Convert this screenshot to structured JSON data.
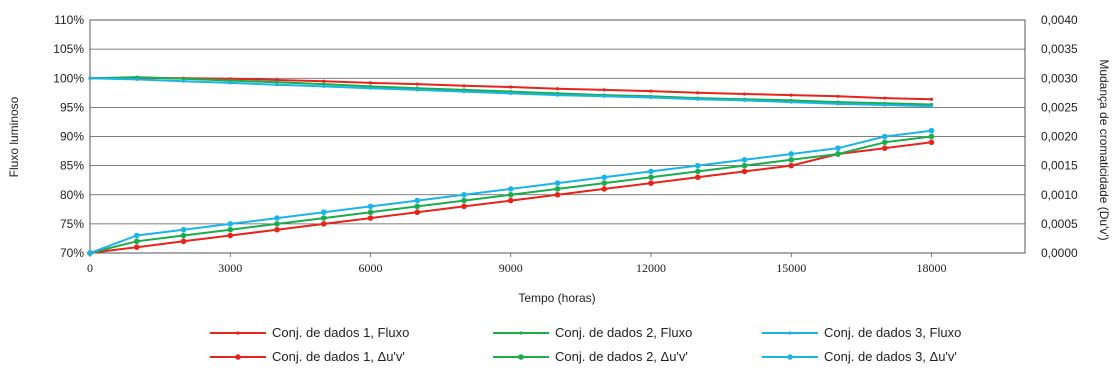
{
  "chart_data": {
    "type": "line",
    "title": "",
    "xlabel": "Tempo (horas)",
    "ylabel_left": "Fluxo luminoso",
    "ylabel_right": "Mudança de cromaticidade (Du'v')",
    "xlim": [
      0,
      20000
    ],
    "ylim_left": [
      70,
      110
    ],
    "ylim_right": [
      0.0,
      0.004
    ],
    "x_ticks": [
      "0",
      "3000",
      "6000",
      "9000",
      "12000",
      "15000",
      "18000"
    ],
    "y_left_ticks": [
      "70%",
      "75%",
      "80%",
      "85%",
      "90%",
      "95%",
      "100%",
      "105%",
      "110%"
    ],
    "y_right_ticks": [
      "0,0000",
      "0,0005",
      "0,0010",
      "0,0015",
      "0,0020",
      "0,0025",
      "0,0030",
      "0,0035",
      "0,0040"
    ],
    "grid": "horizontal",
    "legend_position": "bottom",
    "x": [
      0,
      1000,
      2000,
      3000,
      4000,
      5000,
      6000,
      7000,
      8000,
      9000,
      10000,
      11000,
      12000,
      13000,
      14000,
      15000,
      16000,
      17000,
      18000
    ],
    "series": [
      {
        "name": "Conj. de dados 1, Fluxo",
        "axis": "left",
        "marker": "small",
        "color": "#e8231c",
        "values": [
          100,
          100.1,
          100,
          99.9,
          99.7,
          99.5,
          99.2,
          99.0,
          98.7,
          98.5,
          98.2,
          98.0,
          97.8,
          97.5,
          97.3,
          97.1,
          96.9,
          96.6,
          96.4
        ]
      },
      {
        "name": "Conj. de dados 2, Fluxo",
        "axis": "left",
        "marker": "small",
        "color": "#1aad4c",
        "values": [
          100,
          100.2,
          99.9,
          99.6,
          99.3,
          99.0,
          98.6,
          98.3,
          98.0,
          97.7,
          97.4,
          97.1,
          96.9,
          96.6,
          96.4,
          96.2,
          95.9,
          95.7,
          95.5
        ]
      },
      {
        "name": "Conj. de dados 3, Fluxo",
        "axis": "left",
        "marker": "small",
        "color": "#1ab4e8",
        "values": [
          100,
          99.8,
          99.5,
          99.2,
          98.9,
          98.6,
          98.3,
          98.0,
          97.7,
          97.4,
          97.1,
          96.9,
          96.7,
          96.4,
          96.2,
          95.9,
          95.6,
          95.4,
          95.2
        ]
      },
      {
        "name": "Conj. de dados 1, Δu'v'",
        "axis": "right",
        "marker": "dot",
        "color": "#e8231c",
        "values": [
          0.0,
          0.0001,
          0.0002,
          0.0003,
          0.0004,
          0.0005,
          0.0006,
          0.0007,
          0.0008,
          0.0009,
          0.001,
          0.0011,
          0.0012,
          0.0013,
          0.0014,
          0.0015,
          0.0017,
          0.0018,
          0.0019
        ]
      },
      {
        "name": "Conj. de dados 2, Δu'v'",
        "axis": "right",
        "marker": "dot",
        "color": "#1aad4c",
        "values": [
          0.0,
          0.0002,
          0.0003,
          0.0004,
          0.0005,
          0.0006,
          0.0007,
          0.0008,
          0.0009,
          0.001,
          0.0011,
          0.0012,
          0.0013,
          0.0014,
          0.0015,
          0.0016,
          0.0017,
          0.0019,
          0.002
        ]
      },
      {
        "name": "Conj. de dados 3, Δu'v'",
        "axis": "right",
        "marker": "dot",
        "color": "#1ab4e8",
        "values": [
          0.0,
          0.0003,
          0.0004,
          0.0005,
          0.0006,
          0.0007,
          0.0008,
          0.0009,
          0.001,
          0.0011,
          0.0012,
          0.0013,
          0.0014,
          0.0015,
          0.0016,
          0.0017,
          0.0018,
          0.002,
          0.0021
        ]
      }
    ]
  }
}
